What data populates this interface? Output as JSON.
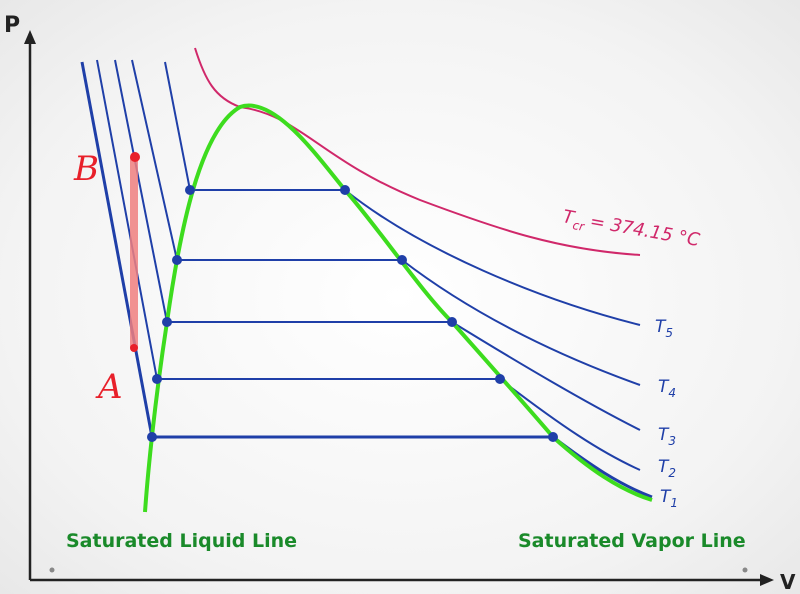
{
  "axes": {
    "y_label": "P",
    "x_label": "V"
  },
  "critical_isotherm": {
    "symbol": "T",
    "subscript": "cr",
    "text": "= 374.15 °C"
  },
  "isotherms": [
    {
      "symbol": "T",
      "subscript": "1"
    },
    {
      "symbol": "T",
      "subscript": "2"
    },
    {
      "symbol": "T",
      "subscript": "3"
    },
    {
      "symbol": "T",
      "subscript": "4"
    },
    {
      "symbol": "T",
      "subscript": "5"
    }
  ],
  "annotations": {
    "point_a": "A",
    "point_b": "B"
  },
  "lines": {
    "liquid": "Saturated Liquid Line",
    "vapor": "Saturated Vapor Line"
  }
}
